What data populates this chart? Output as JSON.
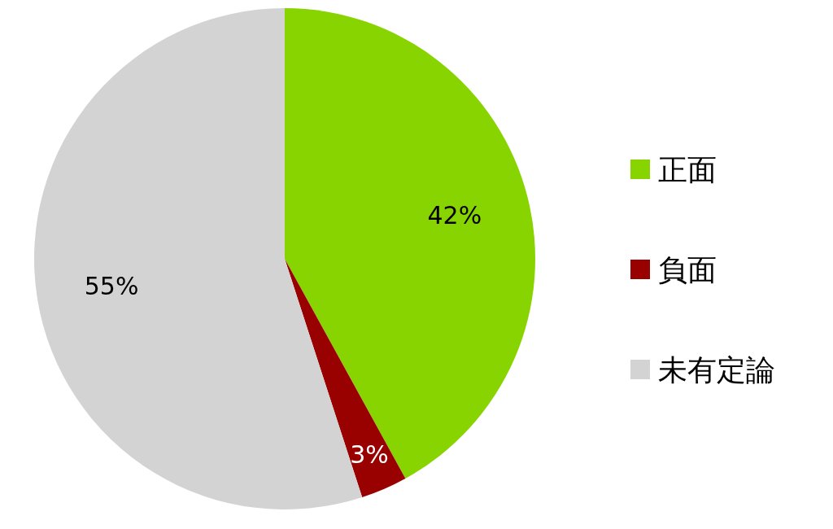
{
  "chart_data": {
    "type": "pie",
    "categories": [
      "正面",
      "負面",
      "未有定論"
    ],
    "values": [
      42,
      3,
      55
    ],
    "colors": [
      "#88d400",
      "#990000",
      "#d3d3d3"
    ],
    "value_labels": [
      "42%",
      "3%",
      "55%"
    ],
    "legend": "right"
  }
}
